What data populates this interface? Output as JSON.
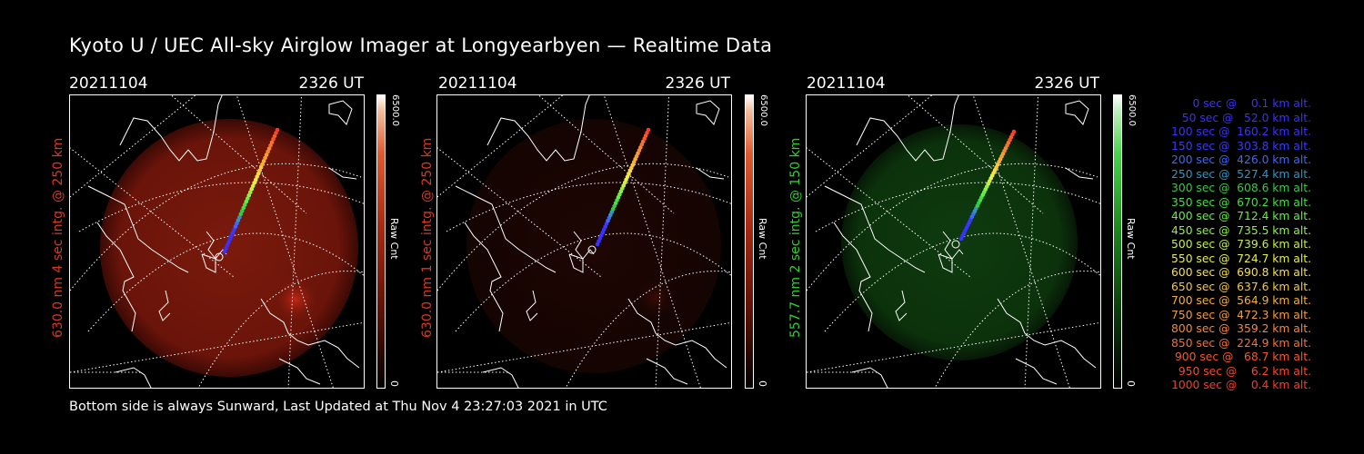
{
  "title": "Kyoto U / UEC All-sky Airglow Imager at Longyearbyen — Realtime Data",
  "footer": "Bottom side is always Sunward, Last Updated at Thu Nov  4 23:27:03 2021 in UTC",
  "colors": {
    "red_channel": "#d83a1e",
    "green_channel": "#2bd32b",
    "cbar_red": "#e8501e",
    "cbar_green": "#36c836"
  },
  "panels": [
    {
      "date": "20211104",
      "time": "2326 UT",
      "ylabel": "630.0 nm 4 sec intg. @ 250 km",
      "cbar_max": "6500.0",
      "cbar_min": "0",
      "cbar_unit": "Raw Cnt"
    },
    {
      "date": "20211104",
      "time": "2326 UT",
      "ylabel": "630.0 nm 1 sec intg. @ 250 km",
      "cbar_max": "6500.0",
      "cbar_min": "0",
      "cbar_unit": "Raw Cnt"
    },
    {
      "date": "20211104",
      "time": "2326 UT",
      "ylabel": "557.7 nm 2 sec intg. @ 150 km",
      "cbar_max": "6500.0",
      "cbar_min": "0",
      "cbar_unit": "Raw Cnt"
    }
  ],
  "legend": [
    {
      "text": "   0 sec @    0.1 km alt.",
      "color": "#3a30ff"
    },
    {
      "text": "  50 sec @   52.0 km alt.",
      "color": "#3a30ff"
    },
    {
      "text": " 100 sec @  160.2 km alt.",
      "color": "#3a30ff"
    },
    {
      "text": " 150 sec @  303.8 km alt.",
      "color": "#3a38ff"
    },
    {
      "text": " 200 sec @  426.0 km alt.",
      "color": "#3a68ff"
    },
    {
      "text": " 250 sec @  527.4 km alt.",
      "color": "#2f95c6"
    },
    {
      "text": " 300 sec @  608.6 km alt.",
      "color": "#38c848"
    },
    {
      "text": " 350 sec @  670.2 km alt.",
      "color": "#40e040"
    },
    {
      "text": " 400 sec @  712.4 km alt.",
      "color": "#60f040"
    },
    {
      "text": " 450 sec @  735.5 km alt.",
      "color": "#90f040"
    },
    {
      "text": " 500 sec @  739.6 km alt.",
      "color": "#c8f040"
    },
    {
      "text": " 550 sec @  724.7 km alt.",
      "color": "#e8f040"
    },
    {
      "text": " 600 sec @  690.8 km alt.",
      "color": "#f8e040"
    },
    {
      "text": " 650 sec @  637.6 km alt.",
      "color": "#f8c838"
    },
    {
      "text": " 700 sec @  564.9 km alt.",
      "color": "#f8b030"
    },
    {
      "text": " 750 sec @  472.3 km alt.",
      "color": "#f89c30"
    },
    {
      "text": " 800 sec @  359.2 km alt.",
      "color": "#f88830"
    },
    {
      "text": " 850 sec @  224.9 km alt.",
      "color": "#f87030"
    },
    {
      "text": " 900 sec @   68.7 km alt.",
      "color": "#f85828"
    },
    {
      "text": " 950 sec @    6.2 km alt.",
      "color": "#f84828"
    },
    {
      "text": "1000 sec @    0.4 km alt.",
      "color": "#f83c28"
    }
  ]
}
